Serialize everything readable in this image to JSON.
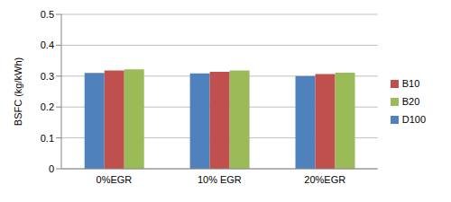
{
  "chart_data": {
    "type": "bar",
    "y_label": "BSFC (kg/kWh)",
    "categories": [
      "0%EGR",
      "10% EGR",
      "20%EGR"
    ],
    "series": [
      {
        "name": "D100",
        "color": "#4f81bd",
        "values": [
          0.31,
          0.309,
          0.3
        ]
      },
      {
        "name": "B10",
        "color": "#c0504d",
        "values": [
          0.318,
          0.314,
          0.307
        ]
      },
      {
        "name": "B20",
        "color": "#9bbb59",
        "values": [
          0.322,
          0.318,
          0.311
        ]
      }
    ],
    "ylim": [
      0,
      0.5
    ],
    "yticks": [
      0,
      0.1,
      0.2,
      0.3,
      0.4,
      0.5
    ],
    "grid": true,
    "legend": "right"
  }
}
